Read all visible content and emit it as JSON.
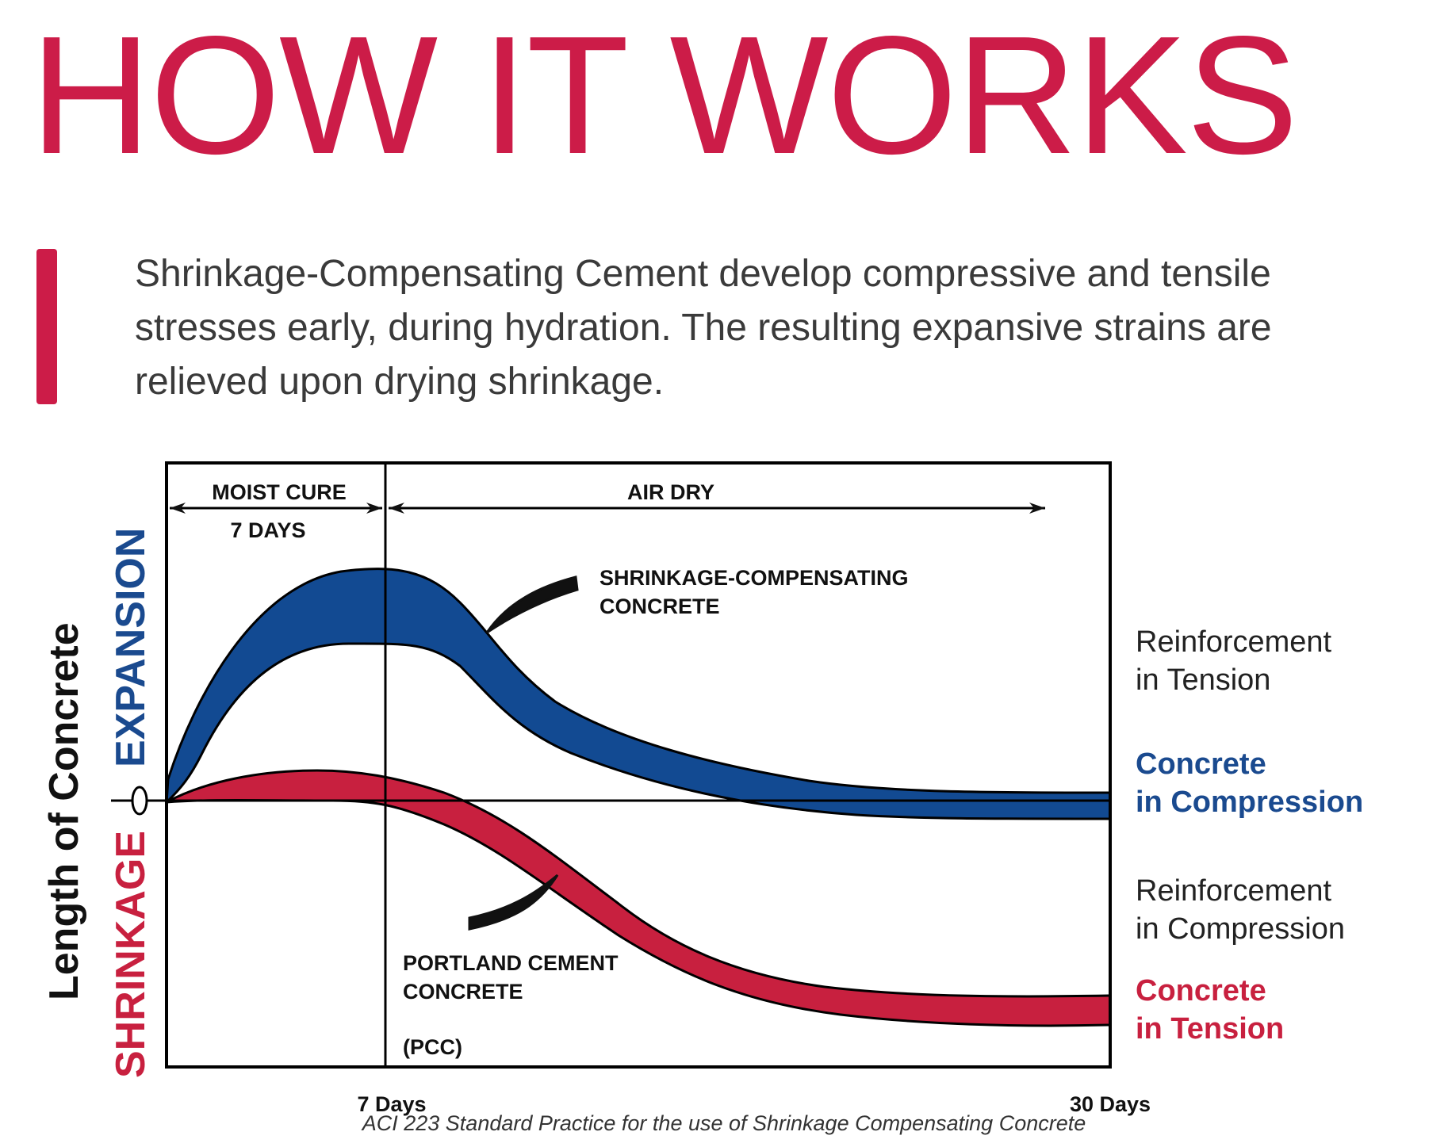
{
  "header": {
    "title": "HOW IT WORKS"
  },
  "intro": {
    "line1": "Shrinkage-Compensating Cement develop compressive and tensile",
    "line2": "stresses early, during hydration. The resulting expansive strains are",
    "line3": "relieved upon drying shrinkage."
  },
  "colors": {
    "accent": "#cc1c48",
    "blue_band": "#124a92",
    "red_band": "#c8203f",
    "blue_text": "#1a4a8f"
  },
  "diagram": {
    "y_axis_label": "Length of Concrete",
    "expansion_label": "EXPANSION",
    "shrinkage_label": "SHRINKAGE",
    "zero_label": "0",
    "moist_cure_label": "MOIST CURE",
    "moist_cure_days": "7 DAYS",
    "air_dry_label": "AIR DRY",
    "sc_label_line1": "SHRINKAGE-COMPENSATING",
    "sc_label_line2": "CONCRETE",
    "pcc_label_line1": "PORTLAND CEMENT",
    "pcc_label_line2": "CONCRETE",
    "pcc_abbrev": "(PCC)",
    "x_tick_7": "7 Days",
    "x_tick_30": "30 Days"
  },
  "right_labels": {
    "reinf_tension_1": "Reinforcement",
    "reinf_tension_2": "in Tension",
    "conc_compression_1": "Concrete",
    "conc_compression_2": "in Compression",
    "reinf_compression_1": "Reinforcement",
    "reinf_compression_2": "in Compression",
    "conc_tension_1": "Concrete",
    "conc_tension_2": "in Tension"
  },
  "citation": "ACI 223 Standard Practice for the use of Shrinkage Compensating Concrete"
}
